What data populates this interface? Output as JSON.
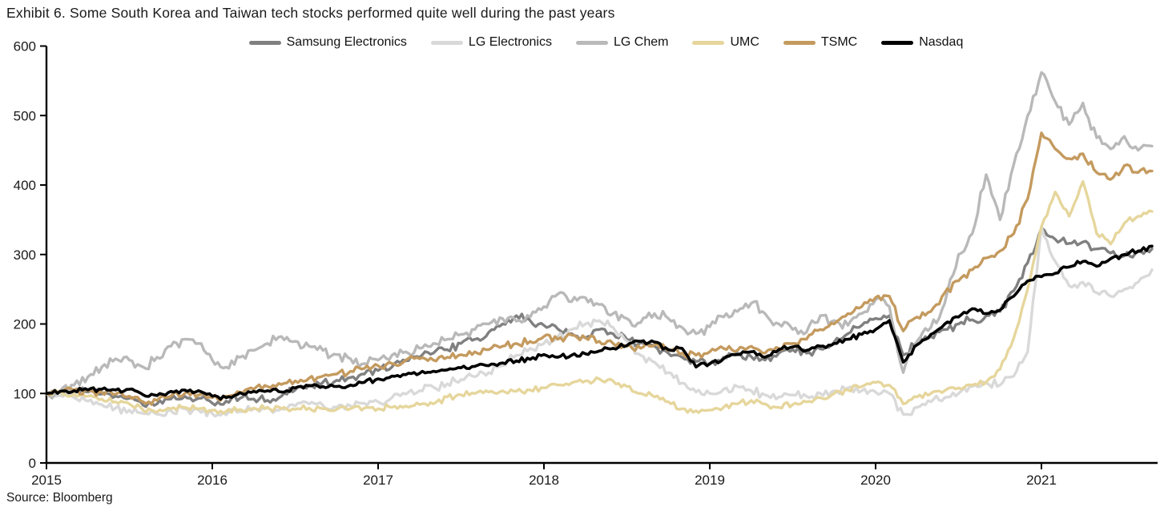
{
  "title": "Exhibit 6. Some South Korea and Taiwan tech stocks performed quite well during the past years",
  "source": "Source: Bloomberg",
  "chart_data": {
    "type": "line",
    "title": "Exhibit 6. Some South Korea and Taiwan tech stocks performed quite well during the past years",
    "xlabel": "",
    "ylabel": "",
    "index_base": 100,
    "x_start_year": 2015,
    "x_points_per_year": 12,
    "x_ticks": [
      2015,
      2016,
      2017,
      2018,
      2019,
      2020,
      2021
    ],
    "ylim": [
      0,
      600
    ],
    "y_ticks": [
      0,
      100,
      200,
      300,
      400,
      500,
      600
    ],
    "grid": false,
    "legend_position": "top",
    "series": [
      {
        "name": "Samsung Electronics",
        "color": "#808080",
        "values": [
          100,
          102,
          104,
          102,
          99,
          96,
          93,
          83,
          85,
          92,
          96,
          93,
          86,
          89,
          93,
          92,
          90,
          96,
          105,
          112,
          116,
          119,
          123,
          128,
          133,
          138,
          147,
          152,
          158,
          163,
          172,
          178,
          188,
          200,
          212,
          205,
          198,
          193,
          186,
          180,
          192,
          186,
          178,
          173,
          168,
          158,
          152,
          146,
          142,
          152,
          158,
          153,
          148,
          158,
          163,
          158,
          164,
          174,
          186,
          198,
          208,
          212,
          155,
          175,
          182,
          192,
          200,
          206,
          212,
          218,
          248,
          288,
          338,
          322,
          316,
          318,
          308,
          302,
          298,
          304,
          308
        ]
      },
      {
        "name": "LG Electronics",
        "color": "#d9d9d9",
        "values": [
          100,
          97,
          94,
          89,
          84,
          79,
          76,
          71,
          70,
          75,
          78,
          76,
          71,
          69,
          74,
          78,
          80,
          78,
          82,
          85,
          83,
          80,
          82,
          86,
          88,
          94,
          99,
          104,
          109,
          114,
          120,
          124,
          130,
          140,
          155,
          165,
          172,
          182,
          192,
          200,
          205,
          195,
          175,
          155,
          145,
          130,
          115,
          102,
          100,
          106,
          110,
          104,
          98,
          95,
          98,
          96,
          100,
          104,
          108,
          104,
          102,
          100,
          70,
          80,
          88,
          94,
          100,
          110,
          115,
          112,
          125,
          160,
          340,
          290,
          255,
          260,
          245,
          240,
          250,
          260,
          278
        ]
      },
      {
        "name": "LG Chem",
        "color": "#b9b9b9",
        "values": [
          100,
          104,
          112,
          124,
          138,
          150,
          148,
          138,
          152,
          168,
          178,
          172,
          148,
          138,
          152,
          162,
          172,
          182,
          175,
          168,
          162,
          156,
          150,
          143,
          148,
          155,
          160,
          165,
          172,
          178,
          185,
          192,
          200,
          208,
          204,
          210,
          225,
          243,
          232,
          238,
          228,
          215,
          208,
          202,
          215,
          208,
          195,
          186,
          196,
          210,
          218,
          230,
          215,
          200,
          192,
          188,
          212,
          205,
          198,
          215,
          235,
          225,
          130,
          175,
          195,
          230,
          300,
          330,
          415,
          350,
          430,
          500,
          562,
          520,
          487,
          518,
          468,
          452,
          470,
          450,
          456
        ]
      },
      {
        "name": "UMC",
        "color": "#e6d69c",
        "values": [
          100,
          102,
          99,
          96,
          92,
          88,
          85,
          76,
          73,
          78,
          80,
          78,
          76,
          74,
          77,
          79,
          80,
          78,
          77,
          79,
          78,
          77,
          78,
          79,
          78,
          80,
          82,
          84,
          85,
          95,
          98,
          100,
          102,
          104,
          103,
          105,
          108,
          112,
          115,
          118,
          121,
          118,
          110,
          100,
          95,
          88,
          78,
          75,
          76,
          80,
          85,
          90,
          85,
          80,
          84,
          88,
          94,
          100,
          105,
          110,
          116,
          112,
          85,
          95,
          100,
          104,
          108,
          112,
          116,
          135,
          180,
          250,
          340,
          390,
          355,
          405,
          330,
          315,
          345,
          355,
          362
        ]
      },
      {
        "name": "TSMC",
        "color": "#c49a5e",
        "values": [
          100,
          103,
          105,
          104,
          102,
          99,
          96,
          88,
          90,
          96,
          100,
          98,
          94,
          96,
          102,
          106,
          110,
          113,
          118,
          122,
          125,
          128,
          132,
          136,
          140,
          143,
          148,
          150,
          148,
          152,
          156,
          160,
          163,
          168,
          172,
          175,
          182,
          178,
          184,
          180,
          175,
          172,
          168,
          165,
          170,
          162,
          158,
          155,
          160,
          165,
          162,
          168,
          158,
          165,
          172,
          178,
          192,
          200,
          215,
          225,
          238,
          240,
          190,
          210,
          218,
          245,
          262,
          278,
          295,
          305,
          330,
          380,
          475,
          452,
          438,
          445,
          418,
          408,
          428,
          418,
          420
        ]
      },
      {
        "name": "Nasdaq",
        "color": "#000000",
        "values": [
          100,
          103,
          104,
          105,
          106,
          105,
          106,
          98,
          97,
          103,
          105,
          104,
          96,
          94,
          101,
          103,
          104,
          102,
          108,
          111,
          110,
          110,
          112,
          116,
          121,
          125,
          127,
          129,
          132,
          134,
          137,
          139,
          140,
          144,
          147,
          149,
          156,
          152,
          155,
          157,
          161,
          165,
          169,
          175,
          174,
          163,
          165,
          138,
          143,
          150,
          156,
          160,
          152,
          163,
          167,
          162,
          168,
          172,
          178,
          185,
          192,
          205,
          145,
          170,
          185,
          200,
          210,
          222,
          215,
          220,
          240,
          262,
          268,
          273,
          282,
          290,
          283,
          294,
          300,
          305,
          312
        ]
      }
    ]
  }
}
